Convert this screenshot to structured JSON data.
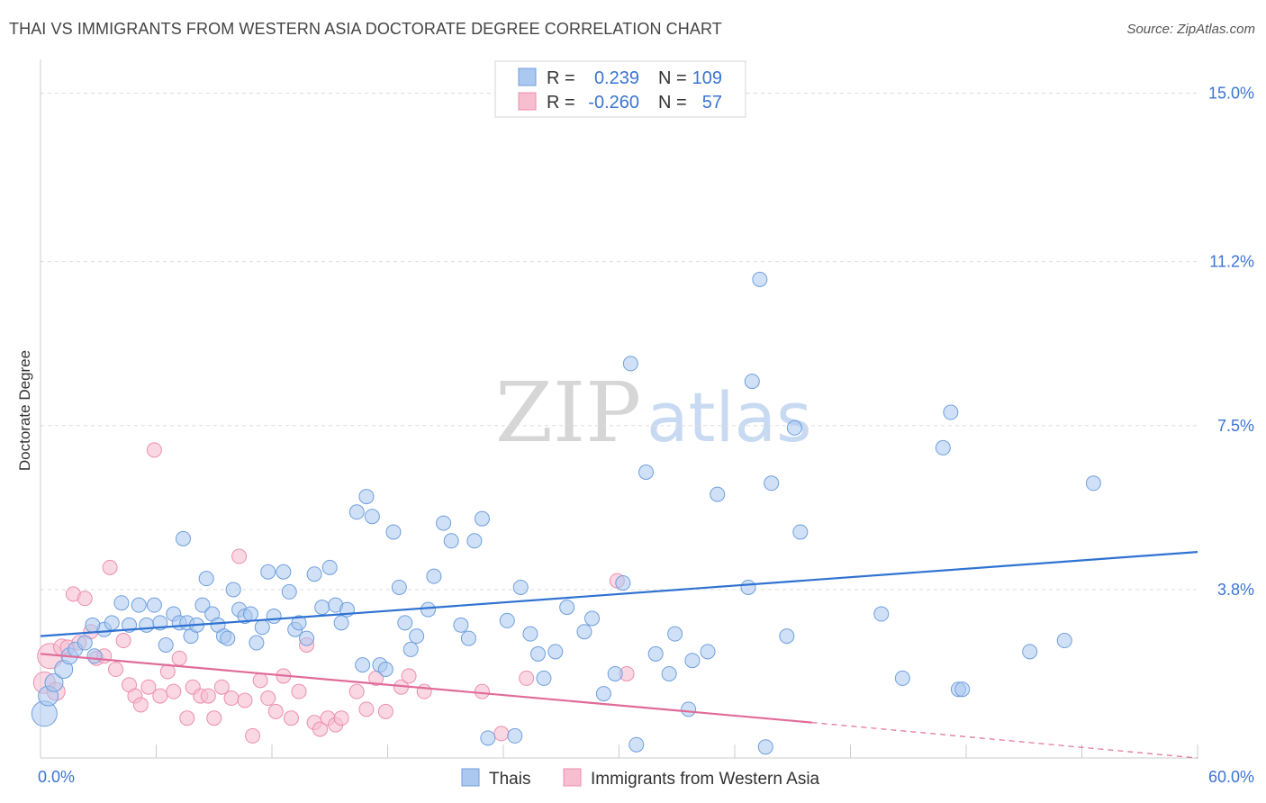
{
  "header": {
    "title": "THAI VS IMMIGRANTS FROM WESTERN ASIA DOCTORATE DEGREE CORRELATION CHART",
    "source": "Source: ZipAtlas.com"
  },
  "watermark": {
    "part1": "ZIP",
    "part2": "atlas"
  },
  "colors": {
    "thai_fill": "#aac8f0",
    "thai_stroke": "#6f9fdc",
    "thai_line": "#2f72d1",
    "wa_fill": "#f7bed0",
    "wa_stroke": "#ec8fae",
    "wa_line": "#e06b98",
    "tick_text": "#3b74d0",
    "grid": "#dddddd"
  },
  "legend": {
    "r_label": "R =",
    "n_label": "N =",
    "rows": [
      {
        "r": "0.239",
        "n": "109"
      },
      {
        "r": "-0.260",
        "n": "57"
      }
    ]
  },
  "chart_data": {
    "type": "scatter",
    "title": "THAI VS IMMIGRANTS FROM WESTERN ASIA DOCTORATE DEGREE CORRELATION CHART",
    "xlabel": "",
    "ylabel": "Doctorate Degree",
    "xlim": [
      0,
      60
    ],
    "ylim": [
      0,
      15.5
    ],
    "x_tick_labels": [
      "0.0%",
      "60.0%"
    ],
    "y_ticks": [
      3.8,
      7.5,
      11.2,
      15.0
    ],
    "y_tick_labels": [
      "3.8%",
      "7.5%",
      "11.2%",
      "15.0%"
    ],
    "grid": true,
    "legend_position": "top-center",
    "series": [
      {
        "name": "Thais",
        "trend": {
          "x": [
            0,
            60
          ],
          "y": [
            2.75,
            4.65
          ]
        },
        "points": [
          [
            0.2,
            1.0,
            14
          ],
          [
            0.4,
            1.4,
            11
          ],
          [
            0.7,
            1.7,
            10
          ],
          [
            1.2,
            2.0,
            10
          ],
          [
            1.5,
            2.3,
            9
          ],
          [
            1.8,
            2.45,
            8
          ],
          [
            2.3,
            2.6,
            8
          ],
          [
            2.8,
            2.3,
            8
          ],
          [
            3.3,
            2.9,
            8
          ],
          [
            2.7,
            3.0,
            8
          ],
          [
            3.7,
            3.05,
            8
          ],
          [
            4.2,
            3.5,
            8
          ],
          [
            4.6,
            3.0,
            8
          ],
          [
            5.1,
            3.45,
            8
          ],
          [
            5.5,
            3.0,
            8
          ],
          [
            5.9,
            3.45,
            8
          ],
          [
            6.2,
            3.05,
            8
          ],
          [
            6.5,
            2.55,
            8
          ],
          [
            6.9,
            3.25,
            8
          ],
          [
            7.2,
            3.05,
            8
          ],
          [
            7.4,
            4.95,
            8
          ],
          [
            7.6,
            3.05,
            8
          ],
          [
            7.8,
            2.75,
            8
          ],
          [
            8.1,
            3.0,
            8
          ],
          [
            8.4,
            3.45,
            8
          ],
          [
            8.6,
            4.05,
            8
          ],
          [
            8.9,
            3.25,
            8
          ],
          [
            9.2,
            3.0,
            8
          ],
          [
            9.5,
            2.75,
            8
          ],
          [
            9.7,
            2.7,
            8
          ],
          [
            10.0,
            3.8,
            8
          ],
          [
            10.3,
            3.35,
            8
          ],
          [
            10.6,
            3.2,
            8
          ],
          [
            10.9,
            3.25,
            8
          ],
          [
            11.2,
            2.6,
            8
          ],
          [
            11.5,
            2.95,
            8
          ],
          [
            11.8,
            4.2,
            8
          ],
          [
            12.1,
            3.2,
            8
          ],
          [
            12.6,
            4.2,
            8
          ],
          [
            12.9,
            3.75,
            8
          ],
          [
            13.2,
            2.9,
            8
          ],
          [
            13.4,
            3.05,
            8
          ],
          [
            13.8,
            2.7,
            8
          ],
          [
            14.2,
            4.15,
            8
          ],
          [
            14.6,
            3.4,
            8
          ],
          [
            15.0,
            4.3,
            8
          ],
          [
            15.3,
            3.45,
            8
          ],
          [
            15.6,
            3.05,
            8
          ],
          [
            15.9,
            3.35,
            8
          ],
          [
            16.4,
            5.55,
            8
          ],
          [
            16.7,
            2.1,
            8
          ],
          [
            16.9,
            5.9,
            8
          ],
          [
            17.2,
            5.45,
            8
          ],
          [
            17.6,
            2.1,
            8
          ],
          [
            17.9,
            2.0,
            8
          ],
          [
            18.3,
            5.1,
            8
          ],
          [
            18.6,
            3.85,
            8
          ],
          [
            18.9,
            3.05,
            8
          ],
          [
            19.2,
            2.45,
            8
          ],
          [
            19.5,
            2.75,
            8
          ],
          [
            20.1,
            3.35,
            8
          ],
          [
            20.4,
            4.1,
            8
          ],
          [
            20.9,
            5.3,
            8
          ],
          [
            21.3,
            4.9,
            8
          ],
          [
            21.8,
            3.0,
            8
          ],
          [
            22.2,
            2.7,
            8
          ],
          [
            22.5,
            4.9,
            8
          ],
          [
            22.9,
            5.4,
            8
          ],
          [
            23.2,
            0.45,
            8
          ],
          [
            24.2,
            3.1,
            8
          ],
          [
            24.6,
            0.5,
            8
          ],
          [
            24.9,
            3.85,
            8
          ],
          [
            25.4,
            2.8,
            8
          ],
          [
            25.8,
            2.35,
            8
          ],
          [
            26.1,
            1.8,
            8
          ],
          [
            26.7,
            2.4,
            8
          ],
          [
            27.3,
            3.4,
            8
          ],
          [
            28.2,
            2.85,
            8
          ],
          [
            28.6,
            3.15,
            8
          ],
          [
            29.2,
            1.45,
            8
          ],
          [
            29.8,
            1.9,
            8
          ],
          [
            30.2,
            3.95,
            8
          ],
          [
            30.6,
            8.9,
            8
          ],
          [
            30.9,
            0.3,
            8
          ],
          [
            31.4,
            6.45,
            8
          ],
          [
            31.9,
            2.35,
            8
          ],
          [
            32.6,
            1.9,
            8
          ],
          [
            32.9,
            2.8,
            8
          ],
          [
            33.6,
            1.1,
            8
          ],
          [
            33.8,
            2.2,
            8
          ],
          [
            34.6,
            2.4,
            8
          ],
          [
            35.1,
            5.95,
            8
          ],
          [
            36.7,
            3.85,
            8
          ],
          [
            36.9,
            8.5,
            8
          ],
          [
            37.3,
            10.8,
            8
          ],
          [
            37.6,
            0.25,
            8
          ],
          [
            37.9,
            6.2,
            8
          ],
          [
            38.7,
            2.75,
            8
          ],
          [
            39.1,
            7.45,
            8
          ],
          [
            39.4,
            5.1,
            8
          ],
          [
            43.6,
            3.25,
            8
          ],
          [
            44.7,
            1.8,
            8
          ],
          [
            46.8,
            7.0,
            8
          ],
          [
            47.2,
            7.8,
            8
          ],
          [
            47.6,
            1.55,
            8
          ],
          [
            47.8,
            1.55,
            8
          ],
          [
            51.3,
            2.4,
            8
          ],
          [
            53.1,
            2.65,
            8
          ],
          [
            54.6,
            6.2,
            8
          ]
        ]
      },
      {
        "name": "Immigrants from Western Asia",
        "trend": {
          "x": [
            0,
            40
          ],
          "y": [
            2.35,
            0.8
          ]
        },
        "trend_dashed": {
          "x": [
            40,
            60
          ],
          "y": [
            0.8,
            0.0
          ]
        },
        "points": [
          [
            0.2,
            1.7,
            12
          ],
          [
            0.5,
            2.3,
            14
          ],
          [
            0.8,
            1.5,
            10
          ],
          [
            1.1,
            2.5,
            9
          ],
          [
            1.4,
            2.5,
            8
          ],
          [
            1.7,
            3.7,
            8
          ],
          [
            2.0,
            2.6,
            8
          ],
          [
            2.3,
            3.6,
            8
          ],
          [
            2.6,
            2.85,
            8
          ],
          [
            2.9,
            2.25,
            8
          ],
          [
            3.3,
            2.3,
            8
          ],
          [
            3.6,
            4.3,
            8
          ],
          [
            3.9,
            2.0,
            8
          ],
          [
            4.3,
            2.65,
            8
          ],
          [
            4.6,
            1.65,
            8
          ],
          [
            4.9,
            1.4,
            8
          ],
          [
            5.2,
            1.2,
            8
          ],
          [
            5.6,
            1.6,
            8
          ],
          [
            5.9,
            6.95,
            8
          ],
          [
            6.2,
            1.4,
            8
          ],
          [
            6.6,
            1.95,
            8
          ],
          [
            6.9,
            1.5,
            8
          ],
          [
            7.2,
            2.25,
            8
          ],
          [
            7.6,
            0.9,
            8
          ],
          [
            7.9,
            1.6,
            8
          ],
          [
            8.3,
            1.4,
            8
          ],
          [
            8.7,
            1.4,
            8
          ],
          [
            9.0,
            0.9,
            8
          ],
          [
            9.4,
            1.6,
            8
          ],
          [
            9.9,
            1.35,
            8
          ],
          [
            10.3,
            4.55,
            8
          ],
          [
            10.6,
            1.3,
            8
          ],
          [
            11.0,
            0.5,
            8
          ],
          [
            11.4,
            1.75,
            8
          ],
          [
            11.8,
            1.35,
            8
          ],
          [
            12.2,
            1.05,
            8
          ],
          [
            12.6,
            1.85,
            8
          ],
          [
            13.0,
            0.9,
            8
          ],
          [
            13.4,
            1.5,
            8
          ],
          [
            13.8,
            2.55,
            8
          ],
          [
            14.2,
            0.8,
            8
          ],
          [
            14.5,
            0.65,
            8
          ],
          [
            14.9,
            0.9,
            8
          ],
          [
            15.3,
            0.75,
            8
          ],
          [
            15.6,
            0.9,
            8
          ],
          [
            16.4,
            1.5,
            8
          ],
          [
            16.9,
            1.1,
            8
          ],
          [
            17.4,
            1.8,
            8
          ],
          [
            17.9,
            1.05,
            8
          ],
          [
            18.7,
            1.6,
            8
          ],
          [
            19.1,
            1.85,
            8
          ],
          [
            19.9,
            1.5,
            8
          ],
          [
            22.9,
            1.5,
            8
          ],
          [
            23.9,
            0.55,
            8
          ],
          [
            25.2,
            1.8,
            8
          ],
          [
            29.9,
            4.0,
            8
          ],
          [
            30.4,
            1.9,
            8
          ]
        ]
      }
    ]
  },
  "bottom_legend": {
    "items": [
      "Thais",
      "Immigrants from Western Asia"
    ]
  }
}
